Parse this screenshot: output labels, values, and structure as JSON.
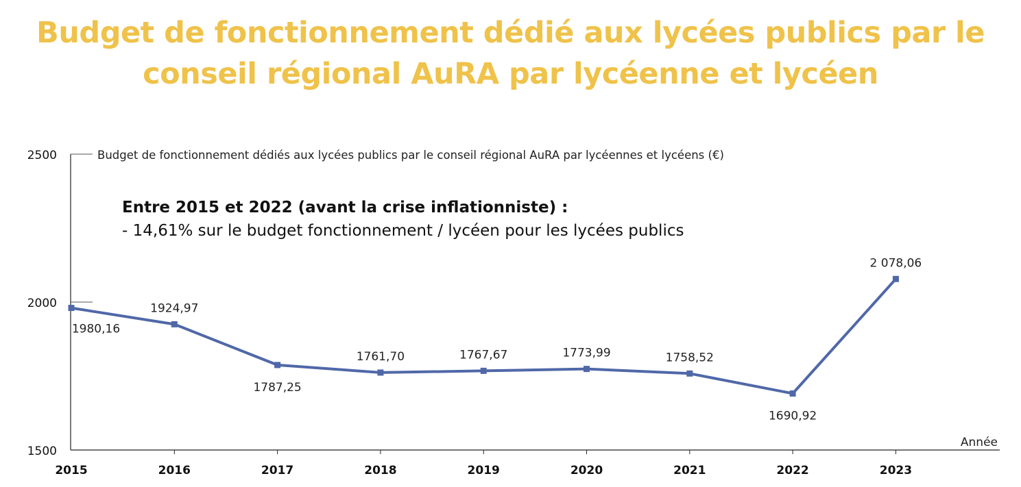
{
  "title": "Budget de fonctionnement dédié aux lycées publics par le conseil régional AuRA par lycéenne et lycéen",
  "annotation": {
    "heading": "Entre 2015 et 2022 (avant la crise inflationniste) :",
    "detail": "- 14,61% sur le budget fonctionnement / lycéen pour les lycées publics"
  },
  "colors": {
    "title": "#EFC24A",
    "series": "#5068A8",
    "axis": "#222222"
  },
  "chart_data": {
    "type": "line",
    "title": "Budget de fonctionnement dédié aux lycées publics par le conseil régional AuRA par lycéenne et lycéen",
    "ylabel": "Budget de fonctionnement dédiés aux lycées publics par le conseil régional AuRA par lycéennes et lycéens (€)",
    "xlabel": "Année",
    "x": [
      "2015",
      "2016",
      "2017",
      "2018",
      "2019",
      "2020",
      "2021",
      "2022",
      "2023"
    ],
    "ylim": [
      1500,
      2500
    ],
    "yticks": [
      "2500",
      "2000",
      "1500"
    ],
    "series": [
      {
        "values": [
          1980.16,
          1924.97,
          1787.25,
          1761.7,
          1767.67,
          1773.99,
          1758.52,
          1690.92,
          2078.06
        ],
        "labels": [
          "1980,16",
          "1924,97",
          "1787,25",
          "1761,70",
          "1767,67",
          "1773,99",
          "1758,52",
          "1690,92",
          "2 078,06"
        ]
      }
    ],
    "grid": false,
    "legend": "none"
  }
}
